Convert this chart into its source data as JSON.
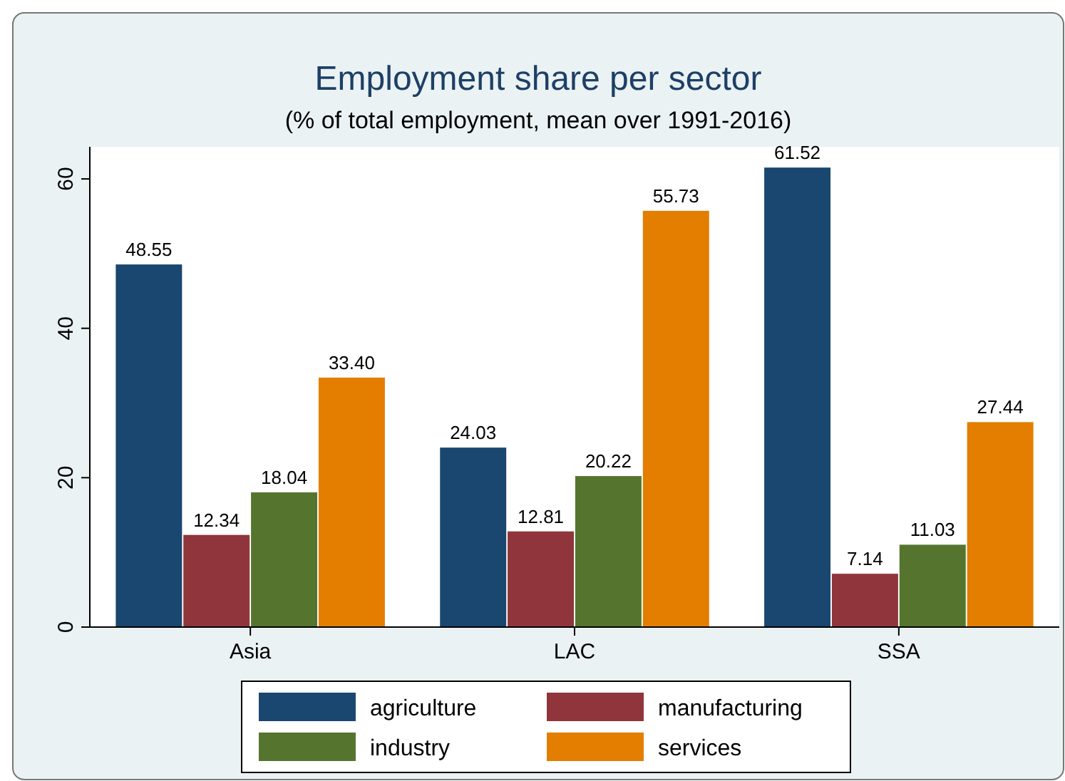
{
  "chart_data": {
    "type": "bar",
    "title": "Employment share per sector",
    "subtitle": "(% of total employment, mean over 1991-2016)",
    "categories": [
      "Asia",
      "LAC",
      "SSA"
    ],
    "series": [
      {
        "name": "agriculture",
        "color": "#1a476f",
        "values": [
          48.55,
          24.03,
          61.52
        ],
        "value_labels": [
          "48.55",
          "24.03",
          "61.52"
        ]
      },
      {
        "name": "manufacturing",
        "color": "#90353b",
        "values": [
          12.34,
          12.81,
          7.14
        ],
        "value_labels": [
          "12.34",
          "12.81",
          "7.14"
        ]
      },
      {
        "name": "industry",
        "color": "#55752f",
        "values": [
          18.04,
          20.22,
          11.03
        ],
        "value_labels": [
          "18.04",
          "20.22",
          "11.03"
        ]
      },
      {
        "name": "services",
        "color": "#e37e00",
        "values": [
          33.4,
          55.73,
          27.44
        ],
        "value_labels": [
          "33.40",
          "55.73",
          "27.44"
        ]
      }
    ],
    "ylim": [
      0,
      64.3
    ],
    "yticks": [
      0,
      20,
      40,
      60
    ],
    "grid": false,
    "legend": "bottom"
  }
}
